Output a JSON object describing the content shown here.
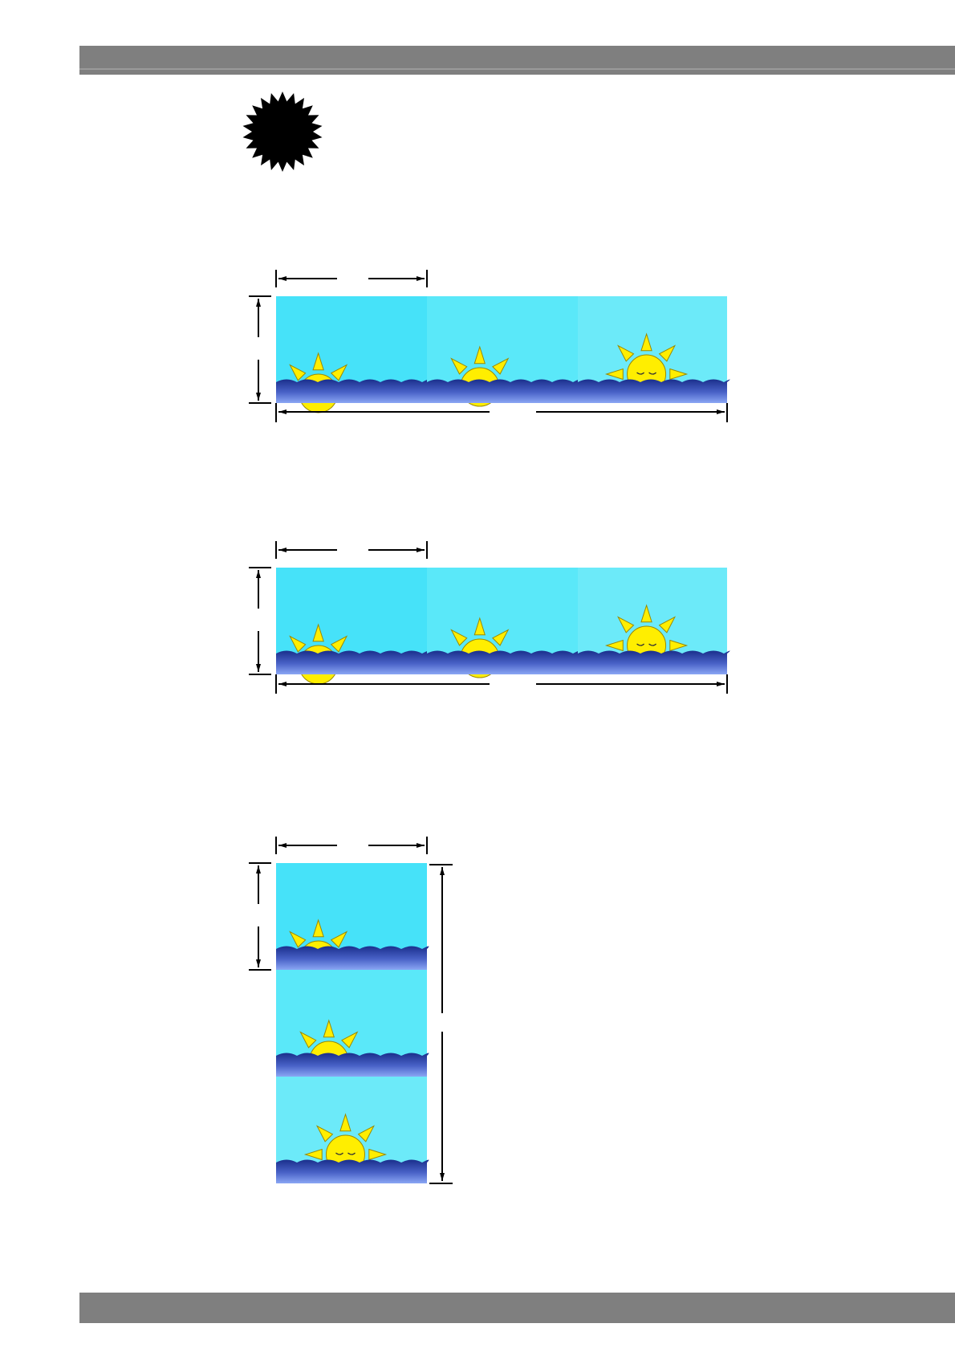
{
  "header": {
    "color": "#7f7f7f"
  },
  "footer": {
    "color": "#7f7f7f"
  },
  "notice": {
    "icon": "starburst-icon",
    "color": "#000000"
  },
  "colors": {
    "sky_panel_1": "#46e2f9",
    "sky_panel_2": "#5ae8f9",
    "sky_panel_3": "#6ceaf9",
    "sea_dark": "#1a2f8c",
    "sea_light": "#7f9cf0",
    "sun": "#ffee00",
    "sun_outline": "#9a8a00",
    "dimension_line": "#000000"
  },
  "figures": [
    {
      "id": "horizontal-layout-1",
      "panels": [
        "sunrise-low",
        "sunrise-mid",
        "sunrise-high"
      ]
    },
    {
      "id": "horizontal-layout-2",
      "panels": [
        "sunrise-low",
        "sunrise-mid",
        "sunrise-high"
      ]
    },
    {
      "id": "vertical-layout",
      "panels": [
        "sunrise-low",
        "sunrise-mid",
        "sunrise-high"
      ]
    }
  ]
}
